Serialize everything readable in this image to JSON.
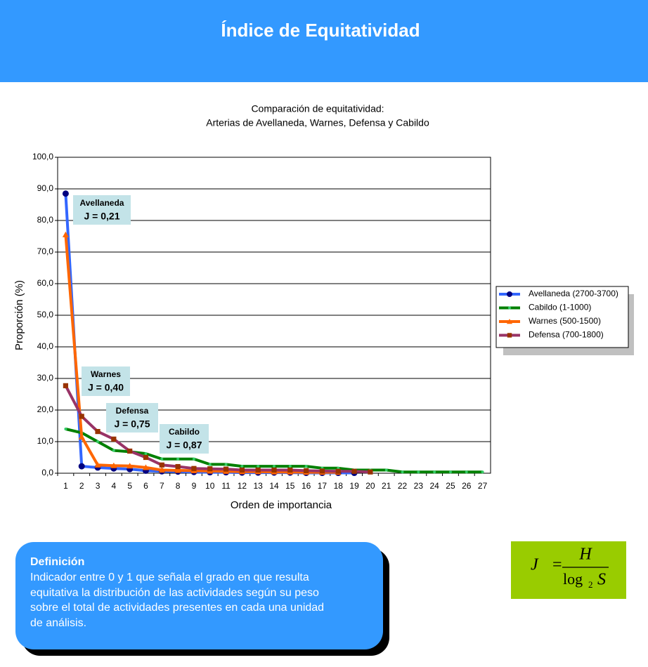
{
  "header": {
    "title": "Índice de Equitatividad"
  },
  "chart_data": {
    "type": "line",
    "title": [
      "Comparación de equitatividad:",
      "Arterias de Avellaneda, Warnes, Defensa y Cabildo"
    ],
    "x_label": "Orden de importancia",
    "y_label": "Proporción (%)",
    "categories": [
      1,
      2,
      3,
      4,
      5,
      6,
      7,
      8,
      9,
      10,
      11,
      12,
      13,
      14,
      15,
      16,
      17,
      18,
      19,
      20,
      21,
      22,
      23,
      24,
      25,
      26,
      27
    ],
    "ylim": [
      0,
      100
    ],
    "yticks": [
      {
        "value": 0,
        "label": "0,0"
      },
      {
        "value": 10,
        "label": "10,0"
      },
      {
        "value": 20,
        "label": "20,0"
      },
      {
        "value": 30,
        "label": "30,0"
      },
      {
        "value": 40,
        "label": "40,0"
      },
      {
        "value": 50,
        "label": "50,0"
      },
      {
        "value": 60,
        "label": "60,0"
      },
      {
        "value": 70,
        "label": "70,0"
      },
      {
        "value": 80,
        "label": "80,0"
      },
      {
        "value": 90,
        "label": "90,0"
      },
      {
        "value": 100,
        "label": "100,0"
      }
    ],
    "grid": true,
    "legend": "right",
    "series": [
      {
        "name": "Avellaneda (2700-3700)",
        "color": "#3366ff",
        "marker": "circle",
        "marker_color": "#000080",
        "values": [
          88.5,
          2.2,
          1.8,
          1.5,
          1.3,
          0.8,
          0.6,
          0.5,
          0.4,
          0.3,
          0.3,
          0.2,
          0.2,
          0.2,
          0.2,
          0.1,
          0.1,
          0.1,
          0.1,
          null,
          null,
          null,
          null,
          null,
          null,
          null,
          null
        ]
      },
      {
        "name": "Cabildo (1-1000)",
        "color": "#008000",
        "marker": "circle",
        "marker_color": "#33cc66",
        "values": [
          14.0,
          12.8,
          10.0,
          7.2,
          6.8,
          6.2,
          4.5,
          4.5,
          4.5,
          2.8,
          2.8,
          2.2,
          2.2,
          2.2,
          2.2,
          2.2,
          1.6,
          1.6,
          1.0,
          1.0,
          1.0,
          0.4,
          0.4,
          0.4,
          0.4,
          0.4,
          0.4
        ]
      },
      {
        "name": "Warnes (500-1500)",
        "color": "#ff6600",
        "marker": "triangle",
        "marker_color": "#ff6600",
        "values": [
          75.5,
          11.5,
          2.6,
          2.4,
          2.3,
          1.8,
          1.0,
          0.9,
          0.8,
          0.7,
          0.6,
          0.5,
          0.5,
          0.4,
          0.4,
          0.3,
          0.3,
          0.3,
          null,
          null,
          null,
          null,
          null,
          null,
          null,
          null,
          null
        ]
      },
      {
        "name": "Defensa (700-1800)",
        "color": "#993366",
        "marker": "square",
        "marker_color": "#993300",
        "values": [
          27.7,
          18.0,
          13.2,
          10.8,
          7.0,
          5.0,
          2.6,
          2.1,
          1.5,
          1.4,
          1.3,
          1.0,
          1.0,
          1.0,
          1.0,
          0.8,
          0.7,
          0.6,
          0.6,
          0.4,
          null,
          null,
          null,
          null,
          null,
          null,
          null
        ]
      }
    ],
    "annotations": [
      {
        "title": "Avellaneda",
        "text": "J = 0,21"
      },
      {
        "title": "Warnes",
        "text": "J = 0,40"
      },
      {
        "title": "Defensa",
        "text": "J = 0,75"
      },
      {
        "title": "Cabildo",
        "text": "J = 0,87"
      }
    ]
  },
  "definition": {
    "title": "Definición",
    "lines": [
      "Indicador entre 0 y 1 que señala el grado en que resulta",
      "equitativa la distribución de las actividades según su peso",
      "sobre el total de actividades presentes en cada una unidad",
      "de análisis."
    ]
  },
  "formula": {
    "lhs": "J",
    "equals": "=",
    "numerator": "H",
    "log": "log",
    "base": "2",
    "arg": "S"
  }
}
